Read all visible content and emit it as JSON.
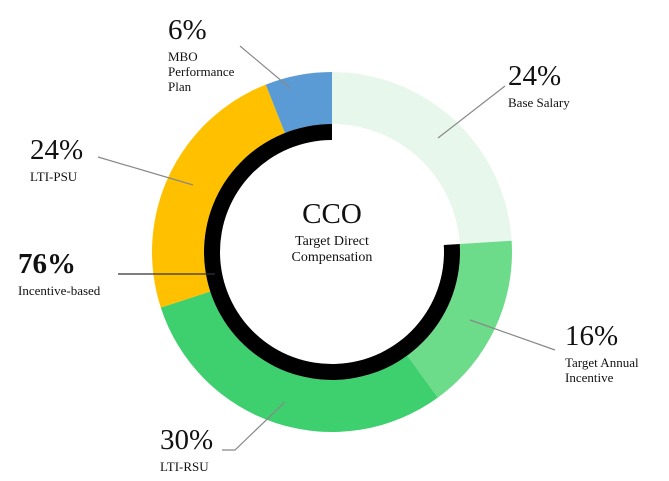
{
  "chart_data": {
    "type": "donut",
    "title": "CCO",
    "subtitle": "Target Direct Compensation",
    "categories": [
      "Base Salary",
      "Target Annual Incentive",
      "LTI-RSU",
      "LTI-PSU",
      "MBO Performance Plan"
    ],
    "values": [
      24,
      16,
      30,
      24,
      6
    ],
    "value_labels": [
      "24%",
      "16%",
      "30%",
      "24%",
      "6%"
    ],
    "colors": [
      "#e8f7ec",
      "#6ddc8a",
      "#3ecf6e",
      "#ffc000",
      "#5b9bd5"
    ],
    "inner": {
      "name": "Incentive-based",
      "value": 76,
      "value_label": "76%",
      "color": "#000000"
    }
  }
}
